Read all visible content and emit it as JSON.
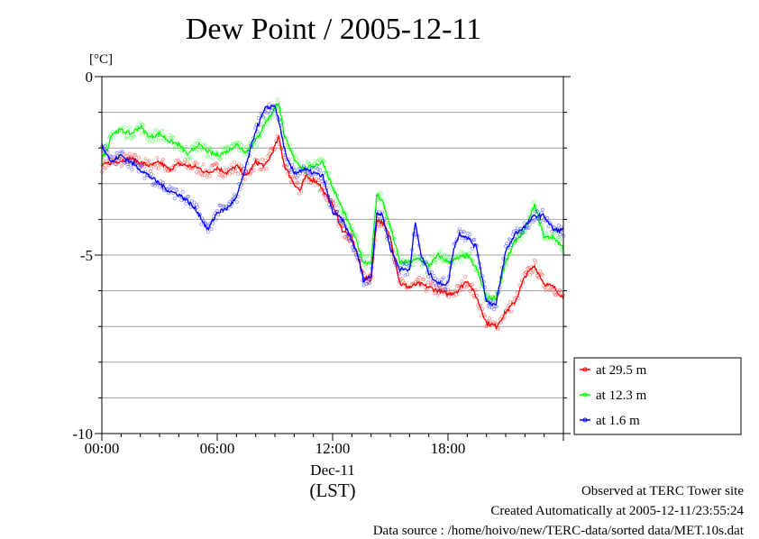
{
  "chart_data": {
    "type": "line",
    "title": "Dew Point / 2005-12-11",
    "ylabel": "[°C]",
    "xlabel": "(LST)",
    "x_date_label": "Dec-11",
    "ylim": [
      -10,
      0
    ],
    "yticks": [
      "0",
      "-5",
      "-10"
    ],
    "xlim_hours": [
      0,
      24
    ],
    "xticks": [
      {
        "hour": 0,
        "label": "00:00"
      },
      {
        "hour": 6,
        "label": "06:00"
      },
      {
        "hour": 12,
        "label": "12:00"
      },
      {
        "hour": 18,
        "label": "18:00"
      }
    ],
    "grid": true,
    "legend_position": "right-bottom",
    "series": [
      {
        "name": "at 29.5 m",
        "color": "#ff0000",
        "points": [
          [
            0,
            -2.5
          ],
          [
            0.5,
            -2.4
          ],
          [
            1,
            -2.35
          ],
          [
            1.5,
            -2.3
          ],
          [
            2,
            -2.4
          ],
          [
            2.5,
            -2.5
          ],
          [
            3,
            -2.4
          ],
          [
            3.5,
            -2.6
          ],
          [
            4,
            -2.45
          ],
          [
            4.5,
            -2.5
          ],
          [
            5,
            -2.55
          ],
          [
            5.5,
            -2.7
          ],
          [
            6,
            -2.55
          ],
          [
            6.5,
            -2.7
          ],
          [
            7,
            -2.5
          ],
          [
            7.5,
            -2.8
          ],
          [
            8,
            -2.4
          ],
          [
            8.5,
            -2.5
          ],
          [
            8.8,
            -2.2
          ],
          [
            9.2,
            -1.7
          ],
          [
            9.5,
            -2.5
          ],
          [
            10,
            -3.0
          ],
          [
            10.3,
            -3.2
          ],
          [
            10.6,
            -2.8
          ],
          [
            11,
            -2.9
          ],
          [
            11.3,
            -3.0
          ],
          [
            11.6,
            -3.3
          ],
          [
            12,
            -3.6
          ],
          [
            12.5,
            -4.3
          ],
          [
            13,
            -4.5
          ],
          [
            13.3,
            -5.0
          ],
          [
            13.6,
            -5.6
          ],
          [
            14,
            -5.7
          ],
          [
            14.3,
            -4.0
          ],
          [
            14.6,
            -4.1
          ],
          [
            15,
            -4.5
          ],
          [
            15.5,
            -5.8
          ],
          [
            16,
            -5.9
          ],
          [
            16.5,
            -5.8
          ],
          [
            17,
            -5.9
          ],
          [
            17.5,
            -6.0
          ],
          [
            18,
            -6.1
          ],
          [
            18.5,
            -6.0
          ],
          [
            19,
            -5.7
          ],
          [
            19.5,
            -6.2
          ],
          [
            20,
            -6.9
          ],
          [
            20.5,
            -7.0
          ],
          [
            21,
            -6.6
          ],
          [
            21.5,
            -6.3
          ],
          [
            22,
            -5.6
          ],
          [
            22.5,
            -5.3
          ],
          [
            23,
            -5.8
          ],
          [
            23.5,
            -5.9
          ],
          [
            24,
            -6.2
          ]
        ]
      },
      {
        "name": "at 12.3 m",
        "color": "#00ff00",
        "points": [
          [
            0,
            -2.3
          ],
          [
            0.3,
            -2.0
          ],
          [
            0.5,
            -1.6
          ],
          [
            1,
            -1.5
          ],
          [
            1.5,
            -1.6
          ],
          [
            2,
            -1.4
          ],
          [
            2.5,
            -1.7
          ],
          [
            3,
            -1.6
          ],
          [
            3.5,
            -1.8
          ],
          [
            4,
            -1.9
          ],
          [
            4.5,
            -2.2
          ],
          [
            5,
            -1.9
          ],
          [
            5.5,
            -2.1
          ],
          [
            6,
            -2.2
          ],
          [
            6.5,
            -2.1
          ],
          [
            7,
            -1.9
          ],
          [
            7.5,
            -2.1
          ],
          [
            8,
            -1.8
          ],
          [
            8.5,
            -1.3
          ],
          [
            9,
            -0.9
          ],
          [
            9.2,
            -0.7
          ],
          [
            9.5,
            -1.7
          ],
          [
            10,
            -2.3
          ],
          [
            10.5,
            -2.6
          ],
          [
            11,
            -2.5
          ],
          [
            11.5,
            -2.4
          ],
          [
            12,
            -3.1
          ],
          [
            12.5,
            -3.7
          ],
          [
            13,
            -4.3
          ],
          [
            13.3,
            -4.7
          ],
          [
            13.6,
            -5.2
          ],
          [
            14,
            -5.2
          ],
          [
            14.3,
            -3.3
          ],
          [
            14.6,
            -3.5
          ],
          [
            15,
            -4.2
          ],
          [
            15.5,
            -5.2
          ],
          [
            16,
            -5.2
          ],
          [
            16.5,
            -5.1
          ],
          [
            17,
            -5.3
          ],
          [
            17.5,
            -5.0
          ],
          [
            18,
            -5.2
          ],
          [
            18.5,
            -5.1
          ],
          [
            19,
            -5.0
          ],
          [
            19.5,
            -5.4
          ],
          [
            20,
            -6.2
          ],
          [
            20.5,
            -6.2
          ],
          [
            21,
            -5.2
          ],
          [
            21.5,
            -4.6
          ],
          [
            22,
            -4.3
          ],
          [
            22.5,
            -3.6
          ],
          [
            23,
            -4.5
          ],
          [
            23.5,
            -4.5
          ],
          [
            24,
            -4.8
          ]
        ]
      },
      {
        "name": "at 1.6 m",
        "color": "#0000ff",
        "points": [
          [
            0,
            -1.9
          ],
          [
            0.5,
            -2.4
          ],
          [
            1,
            -2.2
          ],
          [
            1.5,
            -2.4
          ],
          [
            2,
            -2.6
          ],
          [
            2.5,
            -2.8
          ],
          [
            3,
            -3.0
          ],
          [
            3.5,
            -3.2
          ],
          [
            4,
            -3.3
          ],
          [
            4.5,
            -3.5
          ],
          [
            5,
            -3.8
          ],
          [
            5.5,
            -4.3
          ],
          [
            6,
            -3.8
          ],
          [
            6.5,
            -3.7
          ],
          [
            7,
            -3.4
          ],
          [
            7.5,
            -2.5
          ],
          [
            8,
            -1.5
          ],
          [
            8.5,
            -0.9
          ],
          [
            9,
            -0.8
          ],
          [
            9.3,
            -1.5
          ],
          [
            9.6,
            -2.3
          ],
          [
            10,
            -2.7
          ],
          [
            10.5,
            -2.6
          ],
          [
            11,
            -2.7
          ],
          [
            11.5,
            -2.8
          ],
          [
            12,
            -3.8
          ],
          [
            12.5,
            -4.0
          ],
          [
            13,
            -4.6
          ],
          [
            13.3,
            -5.0
          ],
          [
            13.6,
            -5.7
          ],
          [
            14,
            -5.6
          ],
          [
            14.3,
            -3.8
          ],
          [
            14.6,
            -3.9
          ],
          [
            15,
            -4.8
          ],
          [
            15.5,
            -5.4
          ],
          [
            16,
            -5.4
          ],
          [
            16.3,
            -4.1
          ],
          [
            16.6,
            -5.0
          ],
          [
            17,
            -5.5
          ],
          [
            17.5,
            -5.8
          ],
          [
            18,
            -5.8
          ],
          [
            18.3,
            -4.8
          ],
          [
            18.6,
            -4.4
          ],
          [
            19,
            -4.5
          ],
          [
            19.5,
            -4.8
          ],
          [
            20,
            -6.3
          ],
          [
            20.5,
            -6.4
          ],
          [
            21,
            -4.9
          ],
          [
            21.5,
            -4.4
          ],
          [
            22,
            -4.2
          ],
          [
            22.5,
            -3.9
          ],
          [
            23,
            -3.9
          ],
          [
            23.5,
            -4.3
          ],
          [
            24,
            -4.3
          ]
        ]
      }
    ]
  },
  "footer": {
    "observed": "Observed at TERC Tower site",
    "created": "Created Automatically at 2005-12-11/23:55:24",
    "source": "Data source : /home/hoivo/new/TERC-data/sorted  data/MET.10s.dat"
  }
}
